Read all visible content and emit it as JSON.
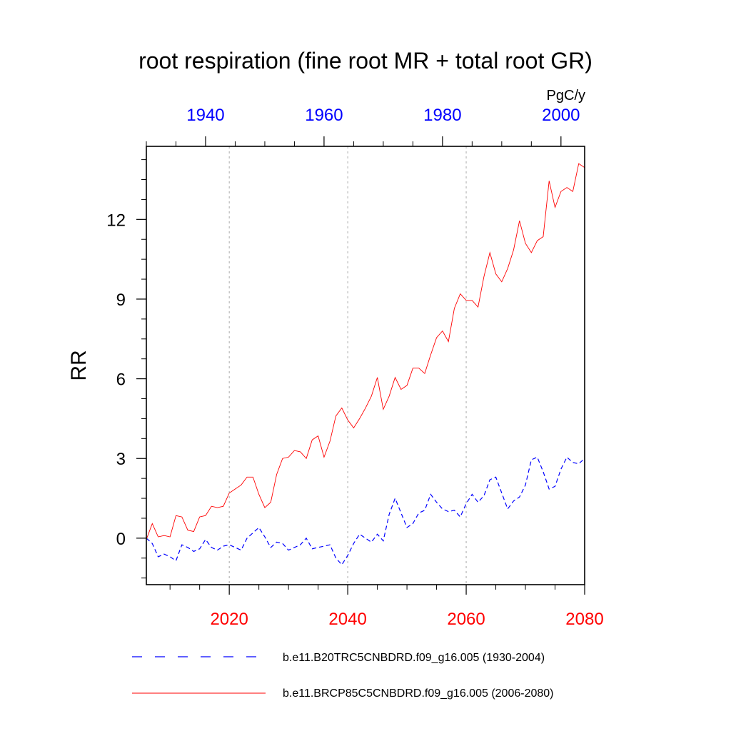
{
  "chart_data": {
    "type": "line",
    "title": "root respiration (fine root MR + total root GR)",
    "units": "PgC/y",
    "ylabel": "RR",
    "ylim": [
      -1.75,
      14.75
    ],
    "yticks": [
      0,
      3,
      6,
      9,
      12
    ],
    "bottom_axis": {
      "xlim": [
        2006,
        2080
      ],
      "ticks": [
        2020,
        2040,
        2060,
        2080
      ],
      "color": "#ff0000"
    },
    "top_axis": {
      "xlim": [
        1930,
        2004
      ],
      "ticks": [
        1940,
        1960,
        1980,
        2000
      ],
      "color": "#0000ff"
    },
    "grid": "vertical dotted at 2020, 2040, 2060",
    "series": [
      {
        "name": "b.e11.B20TRC5CNBDRD.f09_g16.005 (1930-2004)",
        "color": "#0000ff",
        "dash": "dashed",
        "axis": "top",
        "x": [
          1930,
          1931,
          1932,
          1933,
          1934,
          1935,
          1936,
          1937,
          1938,
          1939,
          1940,
          1941,
          1942,
          1943,
          1944,
          1945,
          1946,
          1947,
          1948,
          1949,
          1950,
          1951,
          1952,
          1953,
          1954,
          1955,
          1956,
          1957,
          1958,
          1959,
          1960,
          1961,
          1962,
          1963,
          1964,
          1965,
          1966,
          1967,
          1968,
          1969,
          1970,
          1971,
          1972,
          1973,
          1974,
          1975,
          1976,
          1977,
          1978,
          1979,
          1980,
          1981,
          1982,
          1983,
          1984,
          1985,
          1986,
          1987,
          1988,
          1989,
          1990,
          1991,
          1992,
          1993,
          1994,
          1995,
          1996,
          1997,
          1998,
          1999,
          2000,
          2001,
          2002,
          2003,
          2004
        ],
        "values": [
          0.0,
          -0.2,
          -0.7,
          -0.6,
          -0.7,
          -0.85,
          -0.25,
          -0.35,
          -0.5,
          -0.4,
          -0.05,
          -0.35,
          -0.45,
          -0.3,
          -0.25,
          -0.35,
          -0.45,
          0.0,
          0.2,
          0.4,
          0.05,
          -0.35,
          -0.15,
          -0.2,
          -0.45,
          -0.35,
          -0.25,
          0.0,
          -0.4,
          -0.35,
          -0.3,
          -0.25,
          -0.75,
          -1.0,
          -0.65,
          -0.2,
          0.15,
          0.0,
          -0.15,
          0.15,
          -0.1,
          0.9,
          1.5,
          0.95,
          0.4,
          0.55,
          0.95,
          1.05,
          1.65,
          1.35,
          1.1,
          1.0,
          1.05,
          0.8,
          1.3,
          1.65,
          1.35,
          1.6,
          2.2,
          2.3,
          1.7,
          1.1,
          1.4,
          1.55,
          2.0,
          2.95,
          3.05,
          2.5,
          1.85,
          1.95,
          2.6,
          3.05,
          2.85,
          2.8,
          3.0
        ]
      },
      {
        "name": "b.e11.BRCP85C5CNBDRD.f09_g16.005 (2006-2080)",
        "color": "#ff0000",
        "dash": "solid",
        "axis": "bottom",
        "x": [
          2006,
          2007,
          2008,
          2009,
          2010,
          2011,
          2012,
          2013,
          2014,
          2015,
          2016,
          2017,
          2018,
          2019,
          2020,
          2021,
          2022,
          2023,
          2024,
          2025,
          2026,
          2027,
          2028,
          2029,
          2030,
          2031,
          2032,
          2033,
          2034,
          2035,
          2036,
          2037,
          2038,
          2039,
          2040,
          2041,
          2042,
          2043,
          2044,
          2045,
          2046,
          2047,
          2048,
          2049,
          2050,
          2051,
          2052,
          2053,
          2054,
          2055,
          2056,
          2057,
          2058,
          2059,
          2060,
          2061,
          2062,
          2063,
          2064,
          2065,
          2066,
          2067,
          2068,
          2069,
          2070,
          2071,
          2072,
          2073,
          2074,
          2075,
          2076,
          2077,
          2078,
          2079,
          2080
        ],
        "values": [
          -0.05,
          0.55,
          0.05,
          0.1,
          0.05,
          0.85,
          0.8,
          0.3,
          0.25,
          0.8,
          0.85,
          1.2,
          1.15,
          1.2,
          1.7,
          1.85,
          2.0,
          2.3,
          2.3,
          1.65,
          1.15,
          1.35,
          2.4,
          3.0,
          3.05,
          3.3,
          3.25,
          3.0,
          3.7,
          3.85,
          3.05,
          3.65,
          4.6,
          4.9,
          4.45,
          4.15,
          4.5,
          4.9,
          5.35,
          6.05,
          4.85,
          5.35,
          6.05,
          5.6,
          5.75,
          6.4,
          6.4,
          6.2,
          6.9,
          7.55,
          7.8,
          7.4,
          8.65,
          9.2,
          8.95,
          8.95,
          8.7,
          9.85,
          10.75,
          9.95,
          9.65,
          10.15,
          10.85,
          11.95,
          11.1,
          10.75,
          11.2,
          11.35,
          13.45,
          12.45,
          13.05,
          13.2,
          13.05,
          14.1,
          13.95
        ]
      }
    ]
  }
}
